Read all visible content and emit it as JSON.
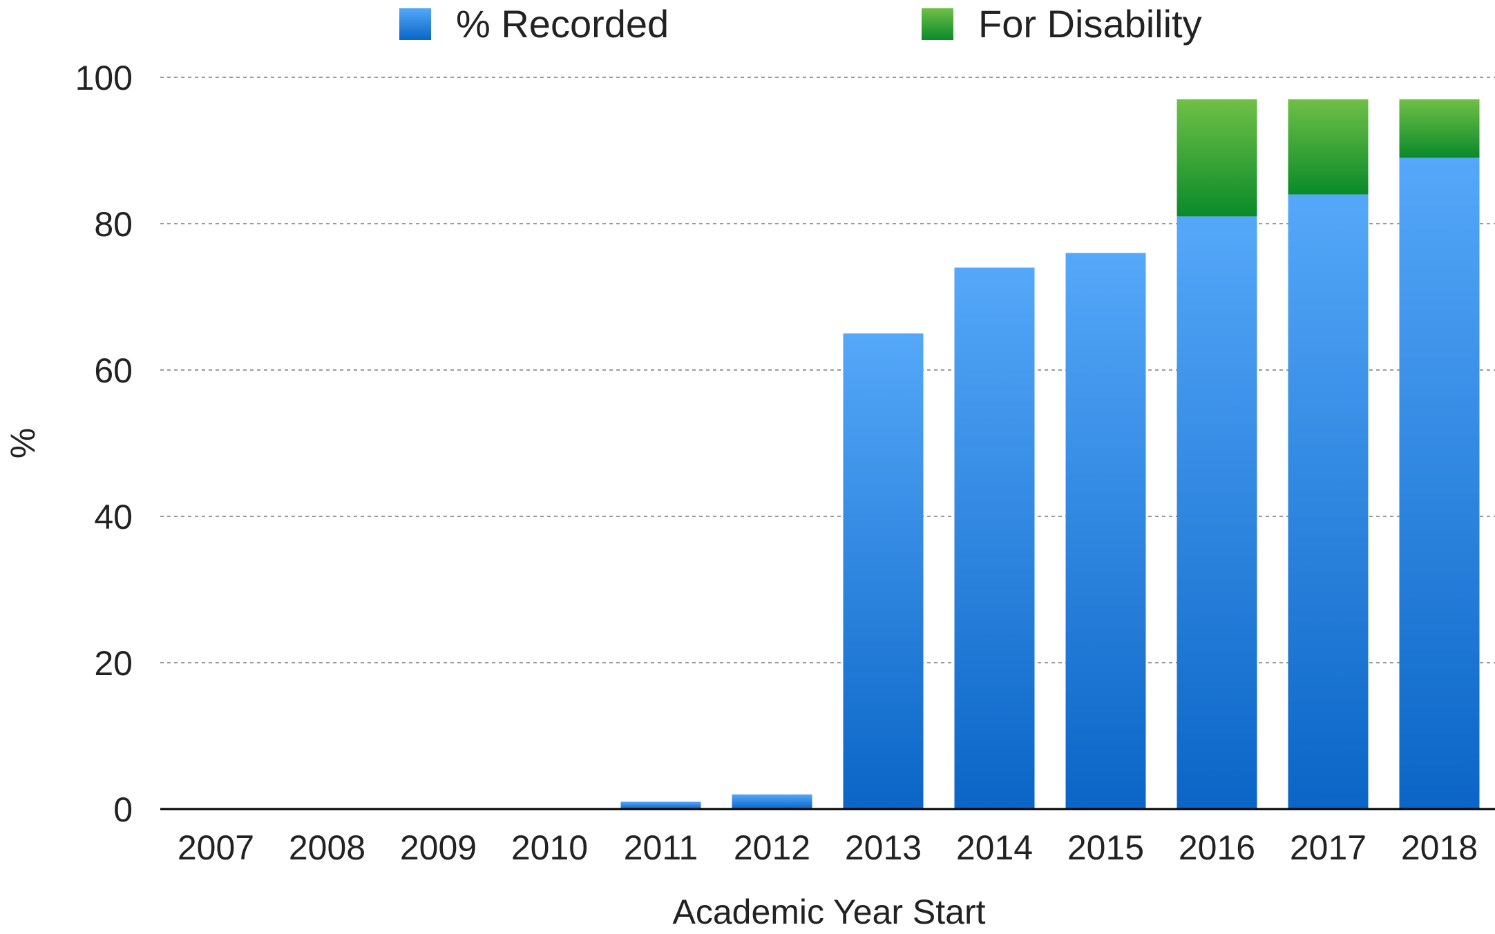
{
  "chart_data": {
    "type": "bar",
    "stacked": true,
    "title": "",
    "xlabel": "Academic Year Start",
    "ylabel": "%",
    "ylim": [
      0,
      100
    ],
    "yticks": [
      0,
      20,
      40,
      60,
      80,
      100
    ],
    "grid": true,
    "legend_position": "top",
    "categories": [
      "2007",
      "2008",
      "2009",
      "2010",
      "2011",
      "2012",
      "2013",
      "2014",
      "2015",
      "2016",
      "2017",
      "2018"
    ],
    "series": [
      {
        "name": "% Recorded",
        "color": "#2e86de",
        "values": [
          0,
          0,
          0,
          0,
          1,
          2,
          65,
          74,
          76,
          81,
          84,
          89
        ]
      },
      {
        "name": "For Disability",
        "color": "#3aa53a",
        "values": [
          0,
          0,
          0,
          0,
          0,
          0,
          0,
          0,
          0,
          16,
          13,
          8
        ]
      }
    ]
  }
}
